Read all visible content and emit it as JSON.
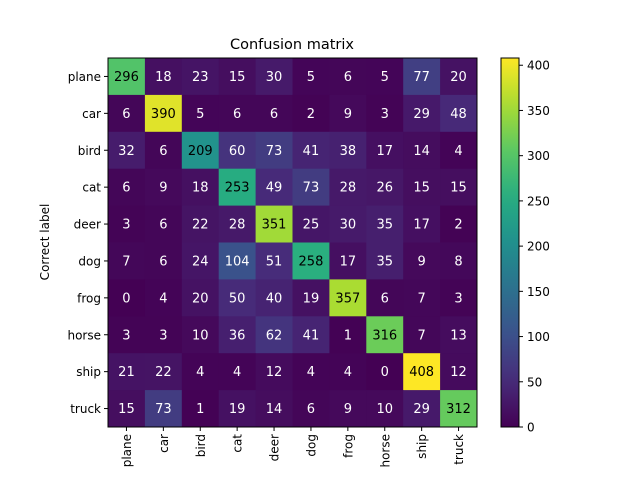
{
  "chart_data": {
    "type": "heatmap",
    "title": "Confusion matrix",
    "ylabel": "Correct label",
    "xlabel": "",
    "categories": [
      "plane",
      "car",
      "bird",
      "cat",
      "deer",
      "dog",
      "frog",
      "horse",
      "ship",
      "truck"
    ],
    "matrix": [
      [
        296,
        18,
        23,
        15,
        30,
        5,
        6,
        5,
        77,
        20
      ],
      [
        6,
        390,
        5,
        6,
        6,
        2,
        9,
        3,
        29,
        48
      ],
      [
        32,
        6,
        209,
        60,
        73,
        41,
        38,
        17,
        14,
        4
      ],
      [
        6,
        9,
        18,
        253,
        49,
        73,
        28,
        26,
        15,
        15
      ],
      [
        3,
        6,
        22,
        28,
        351,
        25,
        30,
        35,
        17,
        2
      ],
      [
        7,
        6,
        24,
        104,
        51,
        258,
        17,
        35,
        9,
        8
      ],
      [
        0,
        4,
        20,
        50,
        40,
        19,
        357,
        6,
        7,
        3
      ],
      [
        3,
        3,
        10,
        36,
        62,
        41,
        1,
        316,
        7,
        13
      ],
      [
        21,
        22,
        4,
        4,
        12,
        4,
        4,
        0,
        408,
        12
      ],
      [
        15,
        73,
        1,
        19,
        14,
        6,
        9,
        10,
        29,
        312
      ]
    ],
    "colorbar": {
      "colormap": "viridis",
      "range": [
        0,
        408
      ],
      "ticks": [
        0,
        50,
        100,
        150,
        200,
        250,
        300,
        350,
        400
      ]
    },
    "grid": false
  }
}
